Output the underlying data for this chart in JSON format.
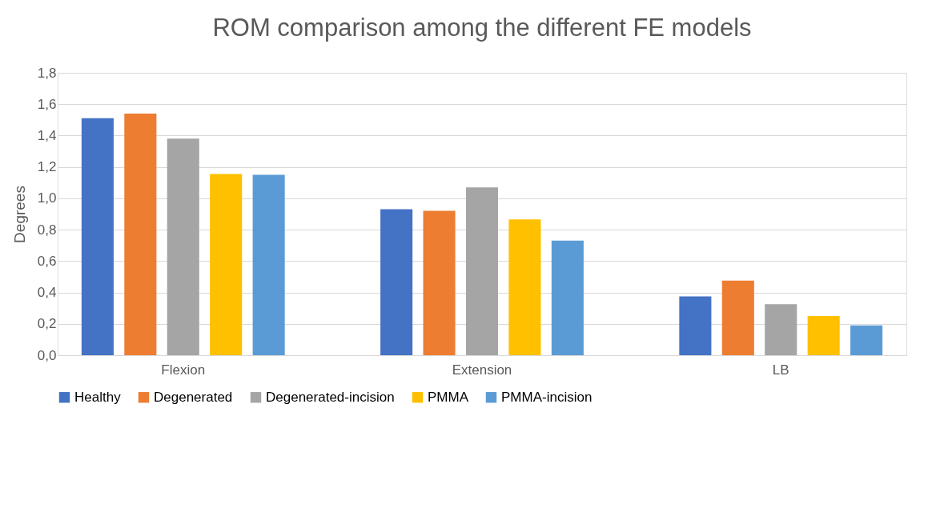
{
  "chart_data": {
    "type": "bar",
    "title": "ROM comparison among the different FE models",
    "ylabel": "Degrees",
    "categories": [
      "Flexion",
      "Extension",
      "LB"
    ],
    "series": [
      {
        "name": "Healthy",
        "color": "#4472c4",
        "values": [
          1.51,
          0.93,
          0.375
        ]
      },
      {
        "name": "Degenerated",
        "color": "#ed7d31",
        "values": [
          1.54,
          0.92,
          0.475
        ]
      },
      {
        "name": "Degenerated-incision",
        "color": "#a5a5a5",
        "values": [
          1.38,
          1.07,
          0.325
        ]
      },
      {
        "name": "PMMA",
        "color": "#ffc000",
        "values": [
          1.155,
          0.865,
          0.25
        ]
      },
      {
        "name": "PMMA-incision",
        "color": "#5b9bd5",
        "values": [
          1.15,
          0.73,
          0.19
        ]
      }
    ],
    "ylim": [
      0,
      1.8
    ],
    "yticks": [
      {
        "value": 0,
        "label": "0,0"
      },
      {
        "value": 0.2,
        "label": "0,2"
      },
      {
        "value": 0.4,
        "label": "0,4"
      },
      {
        "value": 0.6,
        "label": "0,6"
      },
      {
        "value": 0.8,
        "label": "0,8"
      },
      {
        "value": 1.0,
        "label": "1,0"
      },
      {
        "value": 1.2,
        "label": "1,2"
      },
      {
        "value": 1.4,
        "label": "1,4"
      },
      {
        "value": 1.6,
        "label": "1,6"
      },
      {
        "value": 1.8,
        "label": "1,8"
      }
    ],
    "grid": "y",
    "legend": "bottom"
  }
}
